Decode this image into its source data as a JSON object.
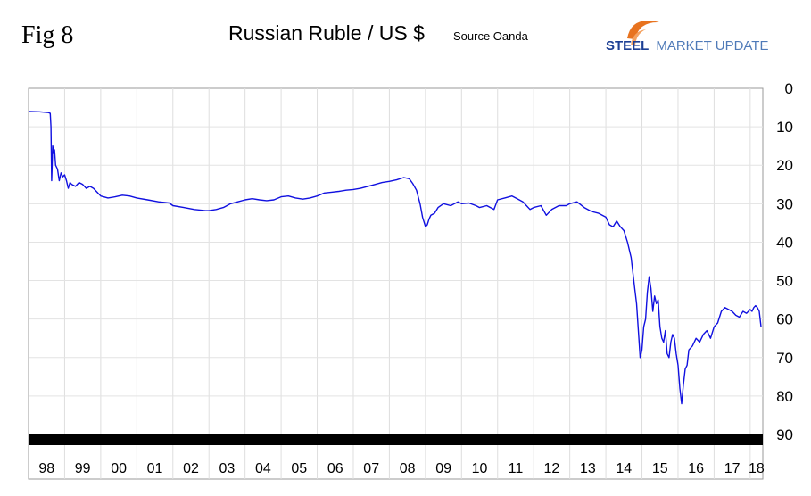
{
  "header": {
    "fig_label": "Fig 8",
    "title": "Russian Ruble / US $",
    "source": "Source Oanda",
    "logo": {
      "steel": "STEEL",
      "rest": "MARKET UPDATE",
      "swoosh_color": "#e8731f",
      "text_color": "#1c3f94"
    }
  },
  "chart_data": {
    "type": "line",
    "title": "Russian Ruble / US $",
    "xlabel": "",
    "ylabel": "",
    "y_inverted": true,
    "ylim": [
      0,
      90
    ],
    "yticks": [
      "0",
      "10",
      "20",
      "30",
      "40",
      "50",
      "60",
      "70",
      "80",
      "90"
    ],
    "xlim": [
      1998.0,
      2018.35
    ],
    "xticks": [
      "98",
      "99",
      "00",
      "01",
      "02",
      "03",
      "04",
      "05",
      "06",
      "07",
      "08",
      "09",
      "10",
      "11",
      "12",
      "13",
      "14",
      "15",
      "16",
      "17",
      "18"
    ],
    "grid": true,
    "line_color": "#1010e0",
    "series": [
      {
        "x": [
          1998.0,
          1998.3,
          1998.55,
          1998.6,
          1998.62,
          1998.64,
          1998.67,
          1998.7,
          1998.72,
          1998.75,
          1998.8,
          1998.85,
          1998.9,
          1998.95,
          1999.0,
          1999.05,
          1999.1,
          1999.15,
          1999.2,
          1999.3,
          1999.4,
          1999.5,
          1999.6,
          1999.7,
          1999.8,
          1999.9,
          2000.0,
          2000.2,
          2000.4,
          2000.6,
          2000.8,
          2001.0,
          2001.3,
          2001.6,
          2001.9,
          2002.0,
          2002.3,
          2002.6,
          2002.9,
          2003.0,
          2003.2,
          2003.4,
          2003.6,
          2003.8,
          2004.0,
          2004.2,
          2004.4,
          2004.6,
          2004.8,
          2005.0,
          2005.2,
          2005.4,
          2005.6,
          2005.8,
          2006.0,
          2006.2,
          2006.4,
          2006.6,
          2006.8,
          2007.0,
          2007.2,
          2007.4,
          2007.6,
          2007.8,
          2008.0,
          2008.2,
          2008.4,
          2008.55,
          2008.65,
          2008.75,
          2008.85,
          2008.92,
          2009.0,
          2009.05,
          2009.1,
          2009.15,
          2009.25,
          2009.35,
          2009.5,
          2009.7,
          2009.9,
          2010.0,
          2010.2,
          2010.4,
          2010.5,
          2010.7,
          2010.9,
          2011.0,
          2011.2,
          2011.4,
          2011.5,
          2011.6,
          2011.7,
          2011.8,
          2011.9,
          2012.0,
          2012.2,
          2012.35,
          2012.5,
          2012.7,
          2012.9,
          2013.0,
          2013.2,
          2013.4,
          2013.6,
          2013.8,
          2014.0,
          2014.1,
          2014.2,
          2014.3,
          2014.4,
          2014.5,
          2014.6,
          2014.7,
          2014.8,
          2014.85,
          2014.9,
          2014.95,
          2015.0,
          2015.05,
          2015.1,
          2015.15,
          2015.2,
          2015.25,
          2015.3,
          2015.35,
          2015.4,
          2015.45,
          2015.5,
          2015.55,
          2015.6,
          2015.65,
          2015.7,
          2015.75,
          2015.8,
          2015.85,
          2015.9,
          2015.95,
          2016.0,
          2016.05,
          2016.1,
          2016.15,
          2016.2,
          2016.25,
          2016.3,
          2016.4,
          2016.5,
          2016.6,
          2016.7,
          2016.8,
          2016.9,
          2017.0,
          2017.1,
          2017.2,
          2017.3,
          2017.4,
          2017.5,
          2017.6,
          2017.7,
          2017.8,
          2017.9,
          2018.0,
          2018.05,
          2018.1,
          2018.15,
          2018.2,
          2018.25,
          2018.3
        ],
        "values": [
          6.0,
          6.1,
          6.3,
          6.5,
          10.0,
          24.0,
          15.0,
          17.0,
          16.0,
          20.0,
          21.0,
          24.0,
          22.0,
          23.0,
          22.5,
          24.0,
          26.0,
          24.5,
          25.0,
          25.5,
          24.5,
          25.0,
          26.0,
          25.5,
          26.0,
          27.0,
          28.0,
          28.5,
          28.2,
          27.8,
          28.0,
          28.5,
          29.0,
          29.5,
          29.8,
          30.5,
          31.0,
          31.5,
          31.8,
          31.8,
          31.5,
          31.0,
          30.0,
          29.5,
          29.0,
          28.7,
          29.0,
          29.2,
          29.0,
          28.2,
          28.0,
          28.5,
          28.8,
          28.5,
          28.0,
          27.2,
          27.0,
          26.8,
          26.5,
          26.3,
          26.0,
          25.5,
          25.0,
          24.5,
          24.2,
          23.8,
          23.2,
          23.5,
          24.8,
          26.5,
          30.0,
          33.5,
          36.0,
          35.5,
          34.0,
          33.0,
          32.5,
          31.0,
          30.0,
          30.5,
          29.5,
          30.0,
          29.8,
          30.5,
          31.0,
          30.5,
          31.5,
          29.0,
          28.5,
          28.0,
          28.5,
          29.0,
          29.5,
          30.5,
          31.5,
          31.0,
          30.5,
          33.0,
          31.5,
          30.5,
          30.5,
          30.0,
          29.5,
          31.0,
          32.0,
          32.5,
          33.5,
          35.5,
          36.0,
          34.5,
          36.0,
          37.0,
          40.0,
          44.0,
          52.0,
          56.0,
          63.0,
          70.0,
          68.0,
          62.0,
          60.0,
          53.0,
          49.0,
          52.0,
          58.0,
          54.0,
          56.0,
          55.0,
          62.0,
          65.0,
          66.0,
          63.0,
          69.0,
          70.0,
          66.0,
          64.0,
          65.0,
          69.0,
          72.0,
          78.0,
          82.0,
          77.0,
          73.0,
          72.0,
          68.0,
          67.0,
          65.0,
          66.0,
          64.0,
          63.0,
          65.0,
          62.0,
          61.0,
          58.0,
          57.0,
          57.5,
          58.0,
          59.0,
          59.5,
          58.0,
          58.5,
          57.5,
          58.0,
          57.0,
          56.5,
          57.0,
          58.0,
          62.0
        ]
      }
    ]
  }
}
